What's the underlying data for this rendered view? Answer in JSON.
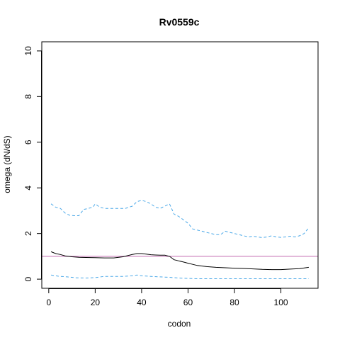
{
  "chart_data": {
    "type": "line",
    "title": "Rv0559c",
    "xlabel": "codon",
    "ylabel": "omega (dN/dS)",
    "xlim": [
      -3,
      116
    ],
    "ylim": [
      -0.4,
      10.4
    ],
    "xticks": [
      0,
      20,
      40,
      60,
      80,
      100
    ],
    "yticks": [
      0,
      2,
      4,
      6,
      8,
      10
    ],
    "grid": false,
    "reference_line": {
      "y": 1,
      "color": "#c46bb0"
    },
    "series": [
      {
        "role": "upper",
        "color": "#4aa8e8",
        "dash": "dashed",
        "x": [
          1,
          3,
          5,
          7,
          9,
          11,
          13,
          15,
          17,
          19,
          20,
          22,
          24,
          27,
          30,
          33,
          36,
          38,
          40,
          42,
          44,
          46,
          48,
          50,
          52,
          54,
          56,
          58,
          60,
          62,
          64,
          66,
          68,
          70,
          72,
          74,
          76,
          78,
          80,
          82,
          84,
          86,
          88,
          90,
          92,
          94,
          96,
          98,
          100,
          102,
          104,
          106,
          108,
          110,
          112
        ],
        "y": [
          3.3,
          3.15,
          3.1,
          2.9,
          2.8,
          2.78,
          2.78,
          3.05,
          3.1,
          3.15,
          3.3,
          3.15,
          3.1,
          3.1,
          3.1,
          3.1,
          3.2,
          3.4,
          3.45,
          3.4,
          3.3,
          3.15,
          3.1,
          3.2,
          3.3,
          2.85,
          2.75,
          2.6,
          2.45,
          2.2,
          2.15,
          2.1,
          2.05,
          2.0,
          1.95,
          1.95,
          2.1,
          2.05,
          2.0,
          1.95,
          1.9,
          1.85,
          1.88,
          1.85,
          1.82,
          1.85,
          1.9,
          1.85,
          1.83,
          1.85,
          1.88,
          1.85,
          1.9,
          2.0,
          2.25
        ]
      },
      {
        "role": "estimate",
        "color": "#000000",
        "dash": "solid",
        "x": [
          1,
          3,
          5,
          7,
          10,
          13,
          16,
          20,
          24,
          28,
          32,
          36,
          38,
          40,
          42,
          44,
          46,
          48,
          50,
          52,
          54,
          56,
          58,
          60,
          62,
          64,
          68,
          72,
          76,
          80,
          84,
          88,
          92,
          96,
          100,
          104,
          108,
          112
        ],
        "y": [
          1.2,
          1.12,
          1.08,
          1.02,
          0.98,
          0.96,
          0.95,
          0.94,
          0.93,
          0.93,
          0.98,
          1.08,
          1.12,
          1.12,
          1.1,
          1.07,
          1.06,
          1.05,
          1.05,
          1.0,
          0.85,
          0.8,
          0.75,
          0.7,
          0.65,
          0.6,
          0.55,
          0.52,
          0.5,
          0.48,
          0.47,
          0.45,
          0.43,
          0.42,
          0.42,
          0.44,
          0.46,
          0.52
        ]
      },
      {
        "role": "lower",
        "color": "#4aa8e8",
        "dash": "dashed",
        "x": [
          1,
          4,
          8,
          12,
          16,
          20,
          24,
          28,
          32,
          36,
          38,
          40,
          44,
          48,
          52,
          56,
          60,
          64,
          70,
          80,
          90,
          100,
          112
        ],
        "y": [
          0.18,
          0.13,
          0.1,
          0.06,
          0.05,
          0.07,
          0.12,
          0.12,
          0.12,
          0.15,
          0.18,
          0.15,
          0.12,
          0.1,
          0.08,
          0.05,
          0.03,
          0.02,
          0.02,
          0.02,
          0.02,
          0.02,
          0.02
        ]
      }
    ]
  }
}
